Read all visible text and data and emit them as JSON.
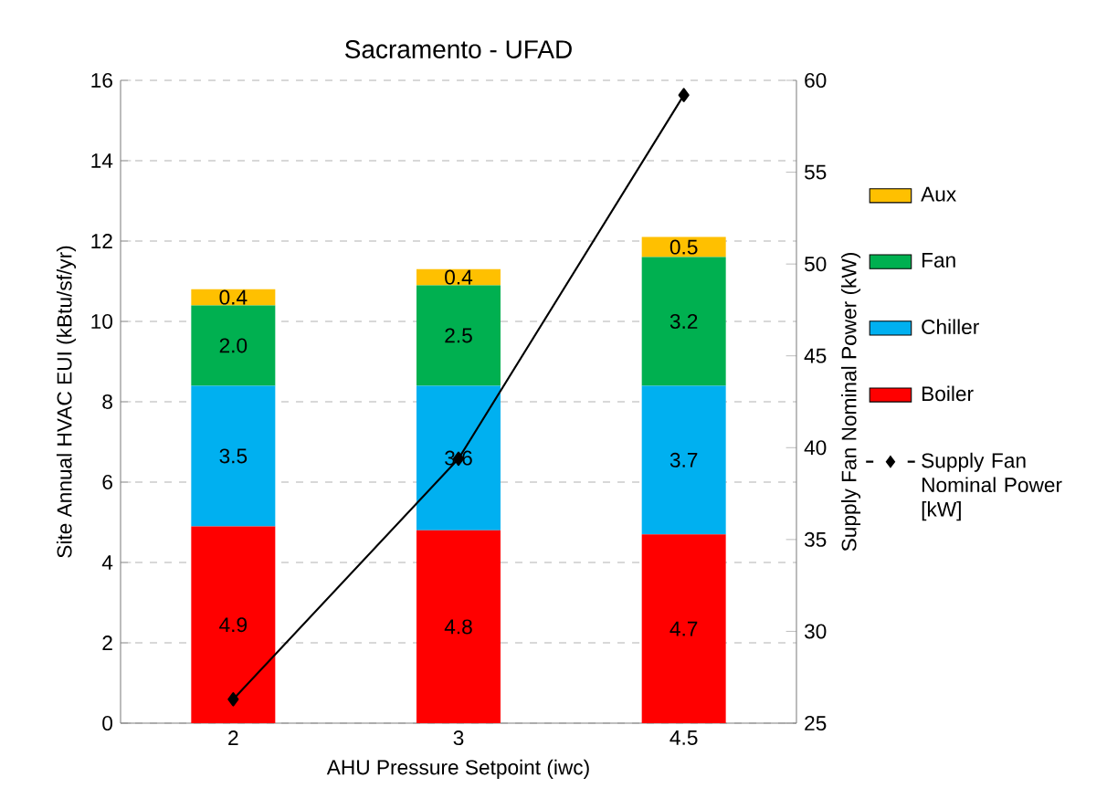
{
  "chart_data": {
    "type": "bar",
    "title": "Sacramento - UFAD",
    "xlabel": "AHU Pressure Setpoint (iwc)",
    "ylabel": "Site Annual HVAC EUI (kBtu/sf/yr)",
    "y2label": "Supply Fan Nominal Power (kW)",
    "categories": [
      "2",
      "3",
      "4.5"
    ],
    "stacked": true,
    "series": [
      {
        "name": "Boiler",
        "color": "#ff0000",
        "values": [
          4.9,
          4.8,
          4.7
        ],
        "value_labels": [
          "4.9",
          "4.8",
          "4.7"
        ]
      },
      {
        "name": "Chiller",
        "color": "#00b0f0",
        "values": [
          3.5,
          3.6,
          3.7
        ],
        "value_labels": [
          "3.5",
          "3.6",
          "3.7"
        ]
      },
      {
        "name": "Fan",
        "color": "#00b050",
        "values": [
          2.0,
          2.5,
          3.2
        ],
        "value_labels": [
          "2.0",
          "2.5",
          "3.2"
        ]
      },
      {
        "name": "Aux",
        "color": "#ffc000",
        "values": [
          0.4,
          0.4,
          0.5
        ],
        "value_labels": [
          "0.4",
          "0.4",
          "0.5"
        ]
      },
      {
        "name": "Supply Fan Nominal Power [kW]",
        "type": "line",
        "axis": "y2",
        "color": "#000000",
        "values": [
          26.3,
          39.4,
          59.2
        ],
        "marker": "diamond",
        "line_style": "solid"
      }
    ],
    "ylim": [
      0,
      16
    ],
    "yticks": [
      0,
      2,
      4,
      6,
      8,
      10,
      12,
      14,
      16
    ],
    "y2lim": [
      25,
      60
    ],
    "y2ticks": [
      25,
      30,
      35,
      40,
      45,
      50,
      55,
      60
    ],
    "grid": "y",
    "legend": "right"
  }
}
